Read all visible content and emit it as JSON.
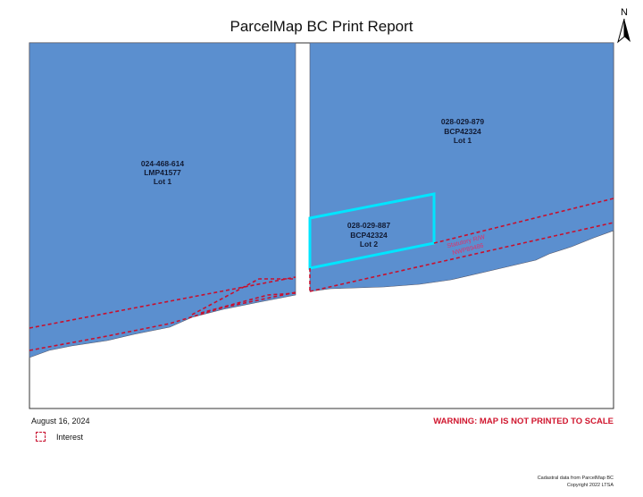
{
  "header": {
    "title": "ParcelMap BC Print Report"
  },
  "north_arrow": {
    "label": "N",
    "icon": "north-arrow-icon"
  },
  "map": {
    "colors": {
      "parcel_fill": "#5b8fcf",
      "selected_outline": "#00e5ff",
      "interest_line": "#c8102e",
      "background": "#ffffff"
    },
    "parcels": [
      {
        "pid": "024-468-614",
        "plan": "LMP41577",
        "lot": "Lot 1"
      },
      {
        "pid": "028-029-879",
        "plan": "BCP42324",
        "lot": "Lot 1"
      },
      {
        "pid": "028-029-887",
        "plan": "BCP42324",
        "lot": "Lot 2",
        "selected": true
      }
    ],
    "interest_label": {
      "line1": "Statutory R/W",
      "line2": "NWP89486"
    }
  },
  "footer": {
    "date": "August 16, 2024",
    "legend": [
      {
        "label": "Interest",
        "icon": "dashed-red-box-icon"
      }
    ],
    "warning": "WARNING: MAP IS NOT PRINTED TO SCALE",
    "credit_line1": "Cadastral data from ParcelMap BC",
    "credit_line2": "Copyright 2022 LTSA"
  }
}
